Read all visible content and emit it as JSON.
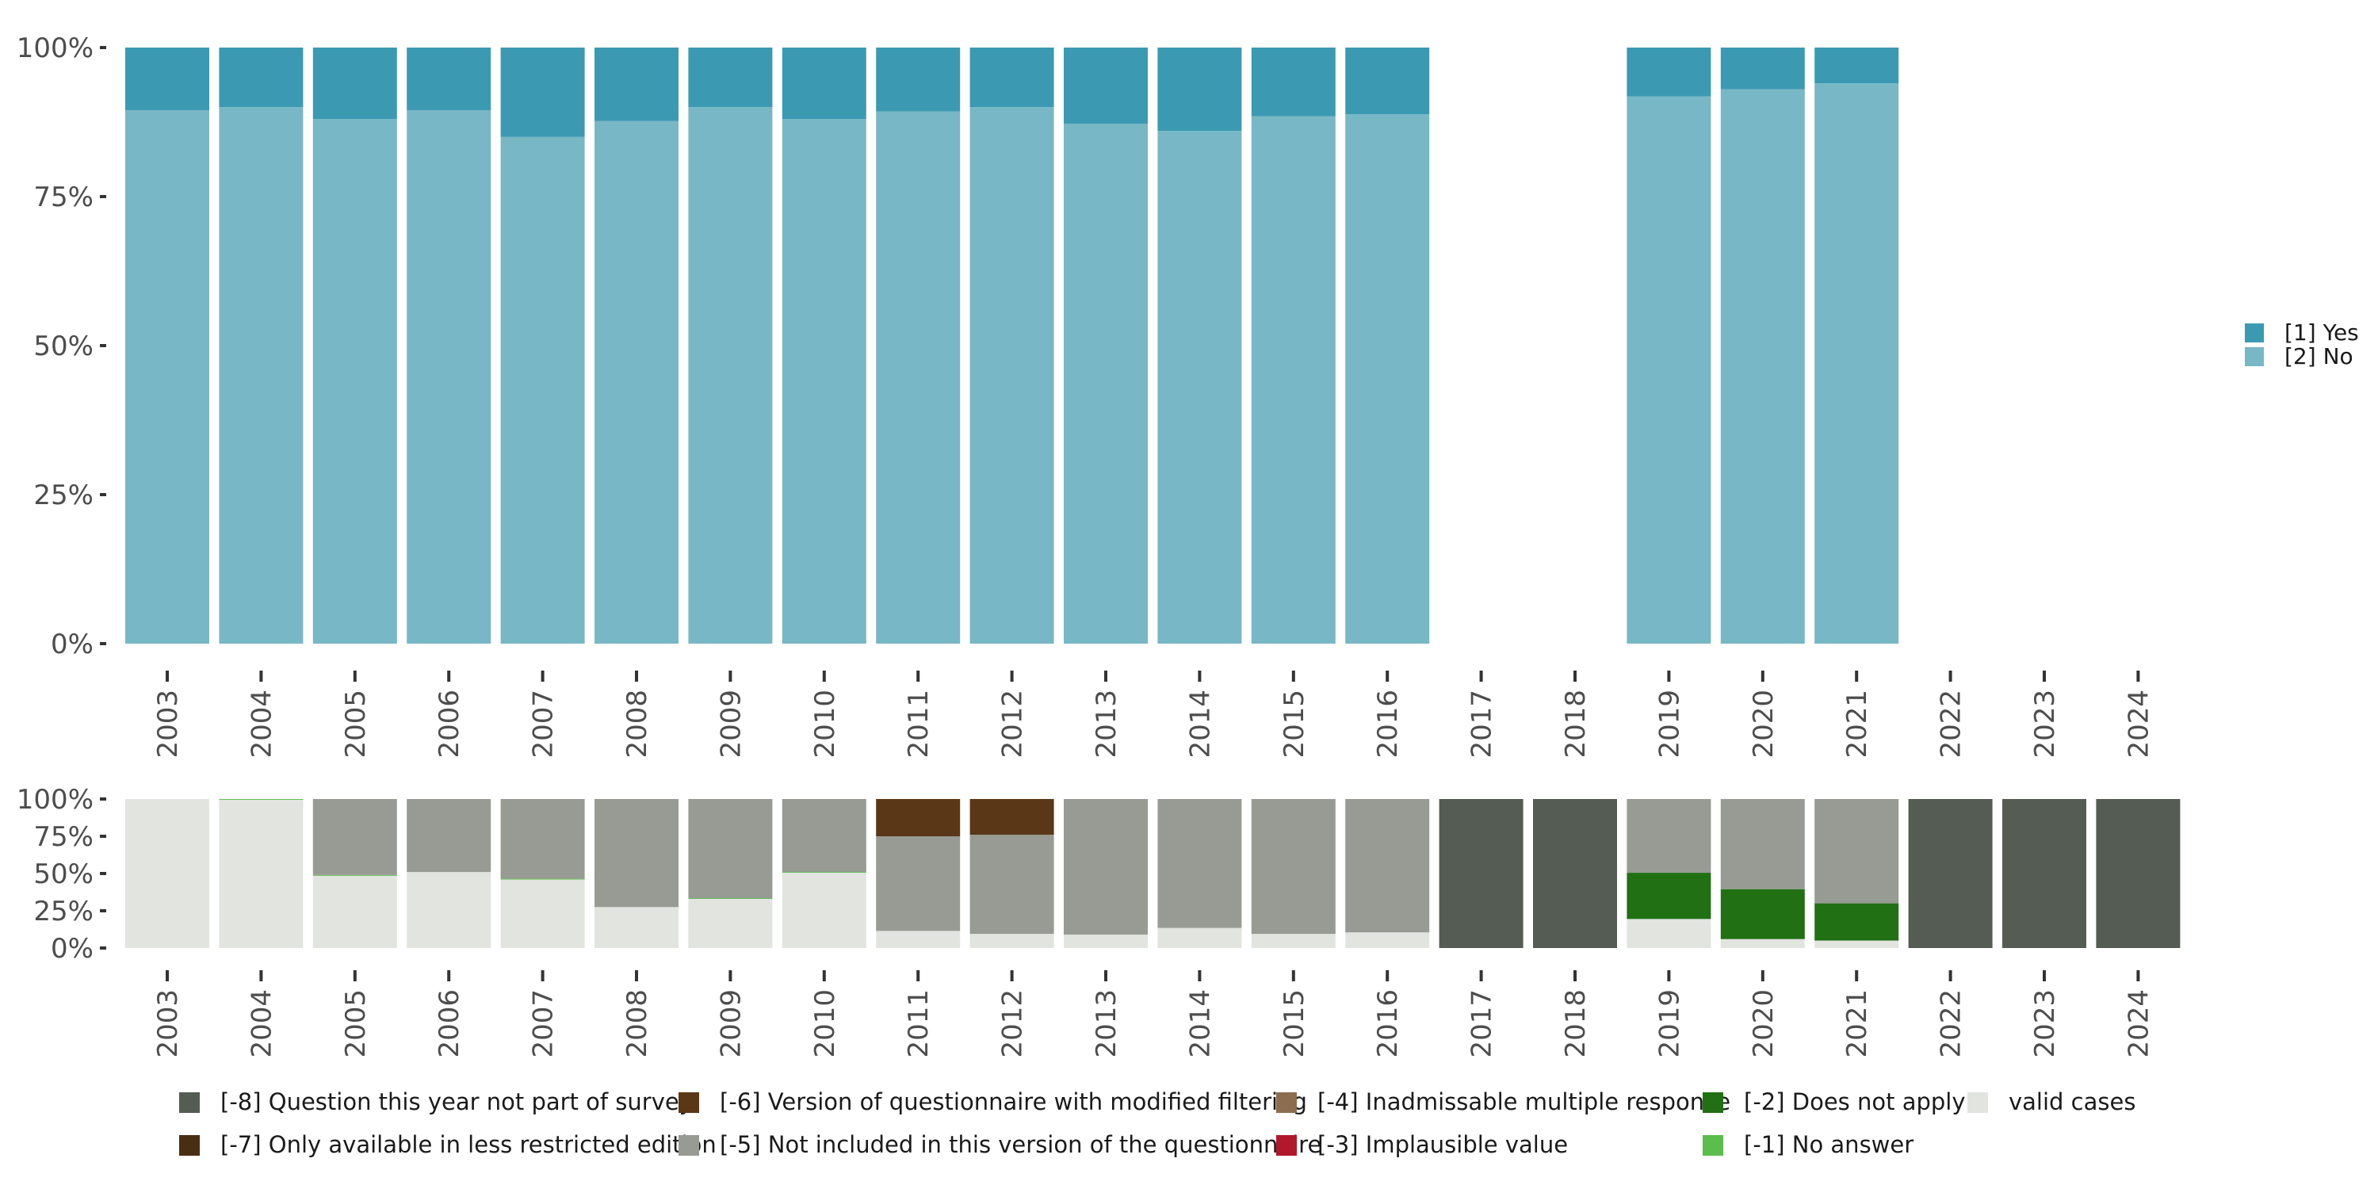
{
  "chart_data": [
    {
      "id": "main",
      "type": "bar",
      "stacked": true,
      "percent": true,
      "title": "",
      "xlabel": "",
      "ylabel": "",
      "ylim": [
        0,
        100
      ],
      "y_ticks": [
        "0%",
        "25%",
        "50%",
        "75%",
        "100%"
      ],
      "categories": [
        "2003",
        "2004",
        "2005",
        "2006",
        "2007",
        "2008",
        "2009",
        "2010",
        "2011",
        "2012",
        "2013",
        "2014",
        "2015",
        "2016",
        "2017",
        "2018",
        "2019",
        "2020",
        "2021",
        "2022",
        "2023",
        "2024"
      ],
      "series": [
        {
          "name": "[2] No",
          "color": "#78b7c5",
          "values": [
            89.5,
            90,
            88,
            89.5,
            85,
            87.7,
            90,
            88,
            89.3,
            90,
            87.2,
            86,
            88.5,
            88.8,
            null,
            null,
            91.8,
            93,
            94,
            null,
            null,
            null
          ]
        },
        {
          "name": "[1] Yes",
          "color": "#3b9ab2",
          "values": [
            10.5,
            10,
            12,
            10.5,
            15,
            12.3,
            10,
            12,
            10.7,
            10,
            12.8,
            14,
            11.5,
            11.2,
            null,
            null,
            8.2,
            7,
            6,
            null,
            null,
            null
          ]
        }
      ],
      "legend": {
        "position": "right",
        "items": [
          "[1] Yes",
          "[2] No"
        ]
      }
    },
    {
      "id": "missings",
      "type": "bar",
      "stacked": true,
      "percent": true,
      "title": "",
      "xlabel": "",
      "ylabel": "",
      "ylim": [
        0,
        100
      ],
      "y_ticks": [
        "0%",
        "25%",
        "50%",
        "75%",
        "100%"
      ],
      "categories": [
        "2003",
        "2004",
        "2005",
        "2006",
        "2007",
        "2008",
        "2009",
        "2010",
        "2011",
        "2012",
        "2013",
        "2014",
        "2015",
        "2016",
        "2017",
        "2018",
        "2019",
        "2020",
        "2021",
        "2022",
        "2023",
        "2024"
      ],
      "series": [
        {
          "name": "valid cases",
          "color": "#e1e4df",
          "values": [
            100,
            99.5,
            48.5,
            51,
            46,
            27.5,
            33,
            50.5,
            11.5,
            9.5,
            9,
            13.5,
            9.5,
            10.5,
            0,
            0,
            19.5,
            6,
            5,
            0,
            0,
            0
          ]
        },
        {
          "name": "[-1] No answer",
          "color": "#5bbd4b",
          "values": [
            0,
            0.5,
            0.5,
            0,
            0.5,
            0,
            0.5,
            0.5,
            0,
            0,
            0,
            0,
            0,
            0,
            0,
            0,
            0,
            0,
            0,
            0,
            0,
            0
          ]
        },
        {
          "name": "[-2] Does not apply",
          "color": "#217014",
          "values": [
            0,
            0,
            0,
            0,
            0,
            0,
            0,
            0,
            0,
            0,
            0,
            0,
            0,
            0,
            0,
            0,
            31,
            33.5,
            25,
            0,
            0,
            0
          ]
        },
        {
          "name": "[-3] Implausible value",
          "color": "#b2182b",
          "values": [
            0,
            0,
            0,
            0,
            0,
            0,
            0,
            0,
            0,
            0,
            0,
            0,
            0,
            0,
            0,
            0,
            0,
            0,
            0,
            0,
            0,
            0
          ]
        },
        {
          "name": "[-4] Inadmissable multiple response",
          "color": "#8c6d4f",
          "values": [
            0,
            0,
            0,
            0,
            0,
            0,
            0,
            0,
            0,
            0,
            0,
            0,
            0,
            0,
            0,
            0,
            0,
            0,
            0,
            0,
            0,
            0
          ]
        },
        {
          "name": "[-5] Not included in this version of the questionnaire",
          "color": "#979b93",
          "values": [
            0,
            0,
            51,
            49,
            53.5,
            72.5,
            66.5,
            49,
            63.5,
            66.5,
            91,
            86.5,
            90.5,
            89.5,
            0,
            0,
            49.5,
            60.5,
            70,
            0,
            0,
            0
          ]
        },
        {
          "name": "[-6] Version of questionnaire with modified filtering",
          "color": "#5a3716",
          "values": [
            0,
            0,
            0,
            0,
            0,
            0,
            0,
            0,
            25,
            24,
            0,
            0,
            0,
            0,
            0,
            0,
            0,
            0,
            0,
            0,
            0,
            0
          ]
        },
        {
          "name": "[-7] Only available in less restricted edition",
          "color": "#4a2e13",
          "values": [
            0,
            0,
            0,
            0,
            0,
            0,
            0,
            0,
            0,
            0,
            0,
            0,
            0,
            0,
            0,
            0,
            0,
            0,
            0,
            0,
            0,
            0
          ]
        },
        {
          "name": "[-8] Question this year not part of survey",
          "color": "#545c54",
          "values": [
            0,
            0,
            0,
            0,
            0,
            0,
            0,
            0,
            0,
            0,
            0,
            0,
            0,
            0,
            100,
            100,
            0,
            0,
            0,
            100,
            100,
            100
          ]
        }
      ],
      "legend": {
        "position": "bottom",
        "items": [
          {
            "label": "[-8] Question this year not part of survey",
            "color": "#545c54"
          },
          {
            "label": "[-7] Only available in less restricted edition",
            "color": "#4a2e13"
          },
          {
            "label": "[-6] Version of questionnaire with modified filtering",
            "color": "#5a3716"
          },
          {
            "label": "[-5] Not included in this version of the questionnaire",
            "color": "#979b93"
          },
          {
            "label": "[-4] Inadmissable multiple response",
            "color": "#8c6d4f"
          },
          {
            "label": "[-3] Implausible value",
            "color": "#b2182b"
          },
          {
            "label": "[-2] Does not apply",
            "color": "#217014"
          },
          {
            "label": "[-1] No answer",
            "color": "#5bbd4b"
          },
          {
            "label": "valid cases",
            "color": "#e1e4df"
          }
        ]
      }
    }
  ]
}
